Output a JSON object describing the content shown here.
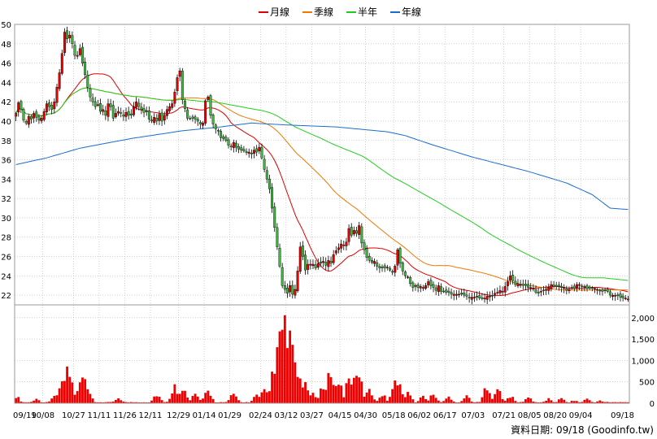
{
  "legend": {
    "items": [
      {
        "label": "月線",
        "color": "#dd0000"
      },
      {
        "label": "季線",
        "color": "#f07800"
      },
      {
        "label": "半年",
        "color": "#22cc22"
      },
      {
        "label": "年線",
        "color": "#1a6ccc"
      }
    ]
  },
  "footer": {
    "credit": "資料日期: 09/18 (Goodinfo.tw)"
  },
  "colors": {
    "up_candle": "#e60000",
    "down_candle": "#3cb83c",
    "volume_bar": "#ee0000",
    "grid": "#b4b4b4",
    "frame": "#9a9a9a"
  },
  "chart_data": {
    "type": "candlestick",
    "price_axis": {
      "ylim": [
        21,
        50
      ],
      "ticks": [
        22,
        24,
        26,
        28,
        30,
        32,
        34,
        36,
        38,
        40,
        42,
        44,
        46,
        48,
        50
      ]
    },
    "volume_axis": {
      "ylim": [
        0,
        2300
      ],
      "ticks": [
        0,
        500,
        1000,
        1500,
        2000
      ],
      "tick_labels": [
        "0",
        "500",
        "1,000",
        "1,500",
        "2,000"
      ]
    },
    "x_axis": {
      "tick_labels": [
        "09/19",
        "10/08",
        "10/27",
        "11/11",
        "11/26",
        "12/11",
        "12/29",
        "01/14",
        "01/29",
        "02/24",
        "03/12",
        "03/27",
        "04/15",
        "04/30",
        "05/18",
        "06/02",
        "06/17",
        "07/03",
        "07/21",
        "08/05",
        "08/20",
        "09/04",
        "09/18"
      ],
      "tick_bar_index": [
        0,
        11,
        23,
        33,
        43,
        53,
        64,
        74,
        84,
        96,
        106,
        116,
        127,
        137,
        148,
        158,
        168,
        179,
        191,
        201,
        211,
        221,
        231
      ]
    },
    "prices": [
      40.8,
      41.9,
      41.2,
      40.1,
      39.8,
      40.5,
      40.2,
      40.8,
      40.4,
      40.1,
      40.3,
      41.0,
      41.8,
      41.5,
      41.2,
      42.0,
      43.5,
      45.0,
      47.0,
      49.2,
      48.5,
      48.9,
      48.0,
      46.8,
      46.8,
      47.5,
      46.0,
      44.8,
      43.5,
      42.5,
      42.0,
      41.5,
      41.7,
      41.0,
      41.2,
      40.6,
      41.8,
      41.5,
      40.3,
      40.8,
      41.0,
      40.8,
      40.5,
      40.9,
      40.6,
      40.6,
      41.5,
      42.0,
      41.5,
      41.2,
      40.9,
      41.0,
      40.2,
      40.0,
      40.4,
      40.0,
      40.7,
      40.0,
      40.6,
      41.2,
      41.5,
      41.8,
      43.0,
      44.5,
      45.2,
      42.2,
      41.3,
      40.3,
      40.3,
      40.3,
      40.2,
      40.0,
      39.7,
      39.8,
      42.1,
      42.5,
      40.6,
      39.7,
      39.2,
      39.0,
      38.3,
      38.2,
      38.0,
      37.5,
      37.4,
      37.8,
      37.3,
      37.1,
      37.0,
      36.9,
      36.8,
      36.8,
      36.6,
      37.0,
      36.8,
      37.3,
      36.2,
      35.0,
      34.0,
      33.0,
      31.0,
      29.0,
      27.0,
      25.0,
      23.0,
      22.6,
      22.2,
      23.0,
      22.1,
      22.6,
      24.5,
      27.0,
      26.0,
      24.6,
      25.2,
      25.2,
      25.2,
      24.8,
      25.3,
      25.3,
      25.5,
      25.1,
      25.6,
      25.3,
      26.2,
      26.6,
      26.9,
      27.3,
      27.2,
      27.5,
      28.9,
      28.2,
      28.7,
      28.4,
      29.2,
      27.4,
      26.7,
      25.9,
      25.6,
      25.4,
      25.5,
      25.0,
      24.8,
      24.9,
      24.8,
      24.9,
      24.6,
      24.4,
      25.0,
      26.7,
      25.3,
      24.5,
      24.0,
      23.9,
      23.2,
      22.8,
      23.0,
      22.8,
      22.9,
      22.8,
      23.0,
      23.4,
      23.0,
      22.8,
      22.5,
      23.0,
      22.4,
      22.4,
      22.3,
      22.3,
      22.1,
      22.1,
      22.1,
      22.1,
      22.1,
      22.0,
      21.9,
      21.7,
      21.8,
      21.8,
      21.8,
      21.7,
      21.7,
      21.7,
      21.9,
      21.9,
      21.9,
      22.2,
      22.3,
      22.5,
      22.4,
      22.9,
      23.4,
      24.0,
      23.5,
      23.1,
      23.2,
      23.1,
      23.0,
      23.0,
      22.8,
      22.8,
      22.7,
      22.3,
      22.2,
      22.4,
      22.5,
      22.6,
      22.8,
      23.1,
      22.9,
      22.9,
      22.9,
      22.8,
      22.8,
      22.5,
      22.6,
      22.8,
      22.7,
      23.1,
      23.1,
      22.9,
      22.9,
      22.7,
      22.7,
      22.7,
      22.7,
      22.6,
      22.5,
      22.4,
      22.5,
      22.4,
      22.0,
      22.0,
      22.0,
      22.0,
      21.8,
      21.7,
      21.7,
      21.6
    ],
    "volume_peaks": [
      {
        "bar": 0,
        "value": 200
      },
      {
        "bar": 8,
        "value": 120
      },
      {
        "bar": 15,
        "value": 220
      },
      {
        "bar": 18,
        "value": 600
      },
      {
        "bar": 20,
        "value": 950
      },
      {
        "bar": 21,
        "value": 750
      },
      {
        "bar": 24,
        "value": 300
      },
      {
        "bar": 26,
        "value": 750
      },
      {
        "bar": 28,
        "value": 350
      },
      {
        "bar": 40,
        "value": 150
      },
      {
        "bar": 55,
        "value": 250
      },
      {
        "bar": 62,
        "value": 480
      },
      {
        "bar": 65,
        "value": 460
      },
      {
        "bar": 70,
        "value": 260
      },
      {
        "bar": 75,
        "value": 350
      },
      {
        "bar": 85,
        "value": 260
      },
      {
        "bar": 94,
        "value": 220
      },
      {
        "bar": 97,
        "value": 350
      },
      {
        "bar": 101,
        "value": 1100
      },
      {
        "bar": 103,
        "value": 1800
      },
      {
        "bar": 104,
        "value": 2150
      },
      {
        "bar": 105,
        "value": 2150
      },
      {
        "bar": 106,
        "value": 1750
      },
      {
        "bar": 107,
        "value": 2050
      },
      {
        "bar": 108,
        "value": 1300
      },
      {
        "bar": 109,
        "value": 600
      },
      {
        "bar": 110,
        "value": 900
      },
      {
        "bar": 113,
        "value": 500
      },
      {
        "bar": 116,
        "value": 300
      },
      {
        "bar": 120,
        "value": 460
      },
      {
        "bar": 123,
        "value": 950
      },
      {
        "bar": 126,
        "value": 600
      },
      {
        "bar": 130,
        "value": 700
      },
      {
        "bar": 132,
        "value": 860
      },
      {
        "bar": 134,
        "value": 730
      },
      {
        "bar": 138,
        "value": 360
      },
      {
        "bar": 143,
        "value": 250
      },
      {
        "bar": 148,
        "value": 700
      },
      {
        "bar": 150,
        "value": 460
      },
      {
        "bar": 153,
        "value": 300
      },
      {
        "bar": 159,
        "value": 200
      },
      {
        "bar": 163,
        "value": 250
      },
      {
        "bar": 169,
        "value": 180
      },
      {
        "bar": 176,
        "value": 200
      },
      {
        "bar": 184,
        "value": 500
      },
      {
        "bar": 188,
        "value": 400
      },
      {
        "bar": 193,
        "value": 200
      },
      {
        "bar": 200,
        "value": 160
      },
      {
        "bar": 208,
        "value": 120
      },
      {
        "bar": 213,
        "value": 130
      },
      {
        "bar": 218,
        "value": 80
      },
      {
        "bar": 223,
        "value": 120
      },
      {
        "bar": 228,
        "value": 70
      },
      {
        "bar": 231,
        "value": 40
      }
    ],
    "moving_averages": [
      {
        "name": "月線",
        "color": "#dd0000",
        "window": 20
      },
      {
        "name": "季線",
        "color": "#f07800",
        "window": 60
      },
      {
        "name": "半年",
        "color": "#22cc22",
        "window": 120
      },
      {
        "name": "年線",
        "color": "#1a6ccc",
        "window": 240
      }
    ],
    "year_line_anchors": [
      [
        0,
        35.5
      ],
      [
        12,
        36.2
      ],
      [
        25,
        37.2
      ],
      [
        45,
        38.2
      ],
      [
        65,
        39.0
      ],
      [
        80,
        39.4
      ],
      [
        92,
        39.8
      ],
      [
        106,
        39.6
      ],
      [
        125,
        39.4
      ],
      [
        145,
        38.9
      ],
      [
        152,
        38.5
      ],
      [
        162,
        37.6
      ],
      [
        178,
        36.3
      ],
      [
        200,
        34.8
      ],
      [
        215,
        33.6
      ],
      [
        225,
        32.4
      ],
      [
        232,
        31.0
      ]
    ]
  }
}
